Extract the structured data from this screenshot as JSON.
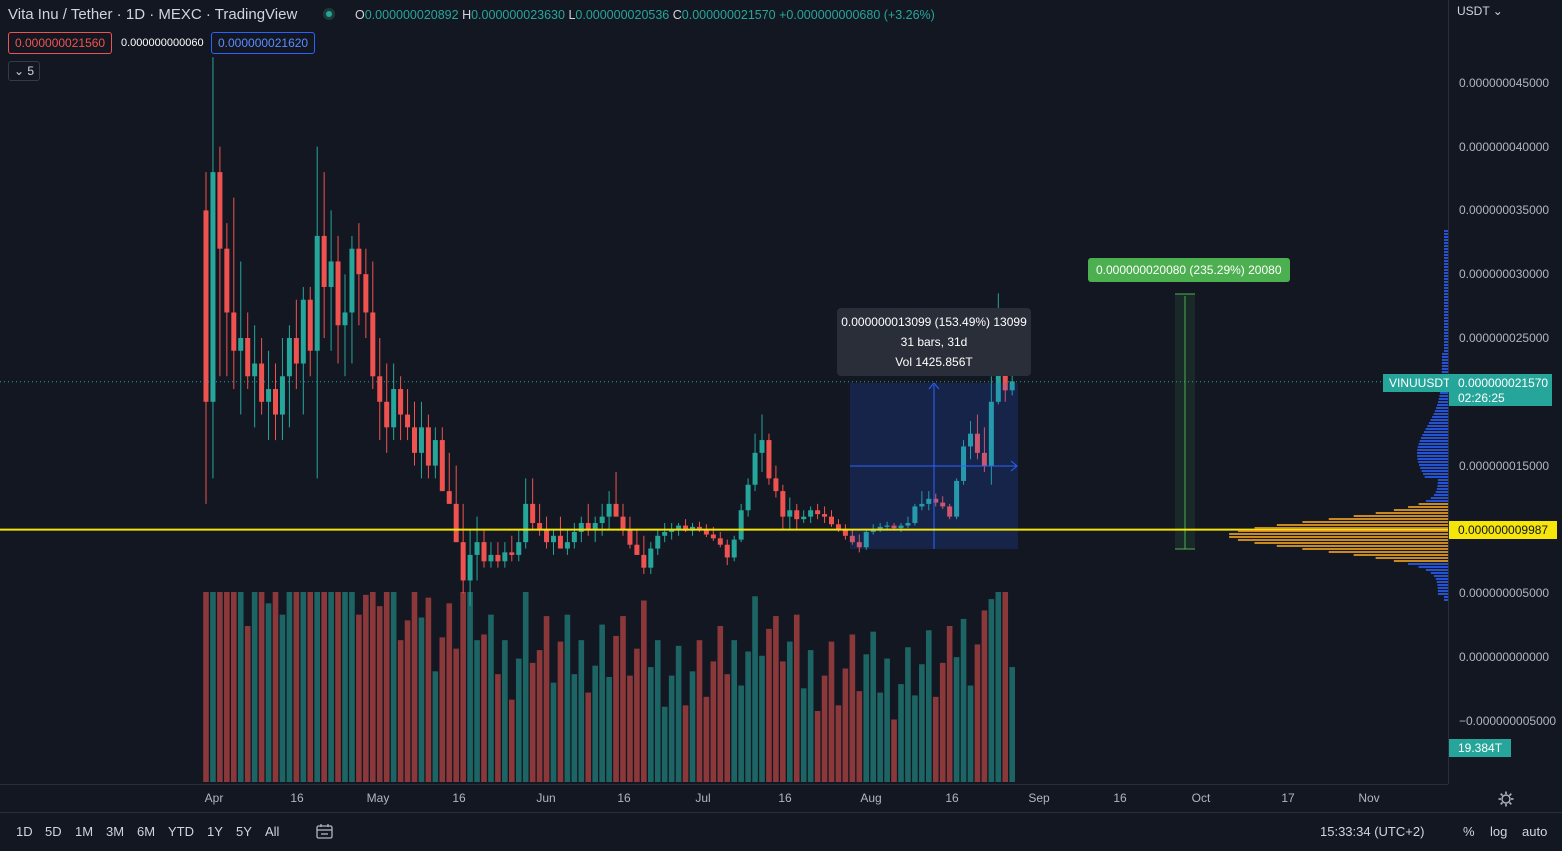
{
  "header": {
    "title": "Vita Inu / Tether · 1D · MEXC · TradingView",
    "ohlc": {
      "o_label": "O",
      "o": "0.000000020892",
      "h_label": "H",
      "h": "0.000000023630",
      "l_label": "L",
      "l": "0.000000020536",
      "c_label": "C",
      "c": "0.000000021570",
      "change": "+0.000000000680 (+3.26%)"
    },
    "sell_price": "0.000000021560",
    "spread": "0.000000000060",
    "buy_price": "0.000000021620",
    "indicators_toggle": "⌄ 5"
  },
  "price_scale": {
    "currency": "USDT ⌄",
    "labels": [
      "0.000000045000",
      "0.000000040000",
      "0.000000035000",
      "0.000000030000",
      "0.000000025000",
      "0.000000015000",
      "0.000000005000",
      "0.000000000000",
      "−0.000000005000"
    ],
    "symbol_tag": "VINUUSDT",
    "last_price": "0.000000021570",
    "countdown": "02:26:25",
    "hline_price": "0.000000009987",
    "volume_tag": "19.384T"
  },
  "drawings": {
    "date_price_range": {
      "line1": "0.000000013099 (153.49%) 13099",
      "line2": "31 bars, 31d",
      "line3": "Vol 1425.856T"
    },
    "price_range": {
      "label": "0.000000020080 (235.29%) 20080"
    }
  },
  "time_axis": {
    "ticks": [
      "Apr",
      "16",
      "May",
      "16",
      "Jun",
      "16",
      "Jul",
      "16",
      "Aug",
      "16",
      "Sep",
      "16",
      "Oct",
      "17",
      "Nov"
    ],
    "settings_icon": "gear-icon"
  },
  "bottom_bar": {
    "timeframes": [
      "1D",
      "5D",
      "1M",
      "3M",
      "6M",
      "YTD",
      "1Y",
      "5Y",
      "All"
    ],
    "goto_icon": "calendar-range-icon",
    "clock": "15:33:34 (UTC+2)",
    "percent": "%",
    "log": "log",
    "auto": "auto"
  },
  "colors": {
    "background": "#131722",
    "up": "#26a69a",
    "down": "#ef5350",
    "hline": "#f5e50a",
    "range_box": "#2962ff",
    "range_measure": "#4caf50"
  },
  "chart_data": {
    "type": "candlestick",
    "symbol": "VINUUSDT",
    "interval": "1D",
    "x_ticks": [
      "Apr",
      "16",
      "May",
      "16",
      "Jun",
      "16",
      "Jul",
      "16",
      "Aug",
      "16",
      "Sep",
      "16",
      "Oct",
      "17",
      "Nov"
    ],
    "y_ticks": [
      -5e-09,
      0,
      5e-09,
      1.5e-08,
      2.5e-08,
      3e-08,
      3.5e-08,
      4e-08,
      4.5e-08
    ],
    "last_close": 2.157e-08,
    "horizontal_line": 9.987e-09,
    "candles_ohlc_e9": [
      [
        35,
        38,
        12,
        20
      ],
      [
        20,
        47,
        14,
        38
      ],
      [
        38,
        40,
        22,
        32
      ],
      [
        32,
        34,
        22,
        27
      ],
      [
        27,
        36,
        21,
        24
      ],
      [
        24,
        31,
        19,
        25
      ],
      [
        25,
        27,
        21,
        22
      ],
      [
        22,
        26,
        18,
        23
      ],
      [
        23,
        25,
        19,
        20
      ],
      [
        20,
        24,
        17,
        21
      ],
      [
        21,
        23,
        17,
        19
      ],
      [
        19,
        25,
        17,
        22
      ],
      [
        22,
        26,
        18,
        25
      ],
      [
        25,
        28,
        21,
        23
      ],
      [
        23,
        29,
        19,
        28
      ],
      [
        28,
        29,
        22,
        24
      ],
      [
        24,
        40,
        14,
        33
      ],
      [
        33,
        38,
        25,
        29
      ],
      [
        29,
        35,
        24,
        31
      ],
      [
        31,
        33,
        23,
        26
      ],
      [
        26,
        30,
        22,
        27
      ],
      [
        27,
        33,
        23,
        32
      ],
      [
        32,
        34,
        26,
        30
      ],
      [
        30,
        32,
        25,
        27
      ],
      [
        27,
        31,
        21,
        22
      ],
      [
        22,
        25,
        17,
        20
      ],
      [
        20,
        23,
        16,
        18
      ],
      [
        18,
        23,
        17,
        21
      ],
      [
        21,
        22,
        17,
        19
      ],
      [
        19,
        21,
        17,
        18
      ],
      [
        18,
        20,
        15,
        16
      ],
      [
        16,
        20,
        14,
        18
      ],
      [
        18,
        19,
        14,
        15
      ],
      [
        15,
        18,
        14,
        17
      ],
      [
        17,
        18,
        14,
        13
      ],
      [
        13,
        16,
        12,
        12
      ],
      [
        12,
        15,
        10,
        9
      ],
      [
        9,
        12,
        5,
        6
      ],
      [
        6,
        10,
        4,
        8
      ],
      [
        8,
        11,
        6,
        9
      ],
      [
        9,
        10,
        7,
        7.5
      ],
      [
        7.5,
        9,
        7,
        8
      ],
      [
        8,
        9,
        7,
        7.5
      ],
      [
        7.5,
        9,
        7,
        8.2
      ],
      [
        8.2,
        9.5,
        7.5,
        8
      ],
      [
        8,
        10,
        7.5,
        9
      ],
      [
        9,
        14,
        8.5,
        12
      ],
      [
        12,
        14,
        10,
        10.5
      ],
      [
        10.5,
        12,
        9.5,
        10
      ],
      [
        10,
        11,
        8.5,
        9
      ],
      [
        9,
        10,
        8,
        9.5
      ],
      [
        9.5,
        11,
        8.5,
        8.5
      ],
      [
        8.5,
        10,
        8,
        9
      ],
      [
        9,
        10.5,
        8.5,
        9.8
      ],
      [
        9.8,
        11,
        9,
        10.5
      ],
      [
        10.5,
        12,
        9.5,
        10
      ],
      [
        10,
        11,
        9,
        10.5
      ],
      [
        10.5,
        12,
        9.5,
        11
      ],
      [
        11,
        13,
        10,
        12
      ],
      [
        12,
        14.5,
        11,
        11
      ],
      [
        11,
        12,
        9.5,
        10
      ],
      [
        10,
        11,
        8.5,
        8.8
      ],
      [
        8.8,
        10,
        8,
        8
      ],
      [
        8,
        9.5,
        6.5,
        7
      ],
      [
        7,
        9,
        6.5,
        8.5
      ],
      [
        8.5,
        10,
        8,
        9.5
      ],
      [
        9.5,
        10.5,
        9,
        9.8
      ],
      [
        9.8,
        10.5,
        9.2,
        10
      ],
      [
        10,
        10.5,
        9.5,
        10.3
      ],
      [
        10.3,
        10.8,
        9.8,
        9.9
      ],
      [
        9.9,
        10.5,
        9.5,
        10.2
      ],
      [
        10.2,
        10.6,
        9.8,
        10
      ],
      [
        10,
        10.4,
        9.4,
        9.6
      ],
      [
        9.6,
        10.2,
        9.1,
        9.3
      ],
      [
        9.3,
        9.8,
        8.6,
        8.8
      ],
      [
        8.8,
        9.2,
        7.2,
        7.8
      ],
      [
        7.8,
        9.5,
        7.5,
        9.2
      ],
      [
        9.2,
        12,
        9,
        11.5
      ],
      [
        11.5,
        14,
        11,
        13.5
      ],
      [
        13.5,
        17.5,
        13,
        16
      ],
      [
        16,
        19,
        14.5,
        17
      ],
      [
        17,
        17.5,
        13.5,
        14
      ],
      [
        14,
        15,
        12.5,
        13
      ],
      [
        13,
        13.5,
        10,
        11
      ],
      [
        11,
        12.5,
        10,
        11.5
      ],
      [
        11.5,
        12,
        10,
        10.8
      ],
      [
        10.8,
        11.5,
        10.5,
        11
      ],
      [
        11,
        11.8,
        10.5,
        11.5
      ],
      [
        11.5,
        12,
        10.8,
        11.2
      ],
      [
        11.2,
        11.8,
        10.5,
        11
      ],
      [
        11,
        11.5,
        10.2,
        10.4
      ],
      [
        10.4,
        10.8,
        9.8,
        10
      ],
      [
        10,
        10.4,
        9.2,
        9.5
      ],
      [
        9.5,
        10,
        8.8,
        9
      ],
      [
        9,
        9.6,
        8.2,
        8.6
      ],
      [
        8.6,
        10,
        8.4,
        9.8
      ],
      [
        9.8,
        10.4,
        9.6,
        10
      ],
      [
        10,
        10.5,
        9.8,
        10.2
      ],
      [
        10.2,
        10.6,
        9.9,
        10.3
      ],
      [
        10.3,
        10.5,
        9.9,
        10.1
      ],
      [
        10.1,
        10.5,
        9.8,
        10.3
      ],
      [
        10.3,
        11,
        10.1,
        10.5
      ],
      [
        10.5,
        12,
        10.3,
        11.8
      ],
      [
        11.8,
        13,
        11.5,
        12
      ],
      [
        12,
        13,
        11.5,
        12.4
      ],
      [
        12.4,
        12.8,
        11.8,
        12.1
      ],
      [
        12.1,
        12.6,
        11.6,
        11.8
      ],
      [
        11.8,
        12,
        10.8,
        11
      ],
      [
        11,
        14,
        10.8,
        13.8
      ],
      [
        13.8,
        17,
        13.5,
        16.5
      ],
      [
        16.5,
        18.5,
        15.5,
        17.5
      ],
      [
        17.5,
        19,
        15.5,
        16
      ],
      [
        16,
        18,
        14.5,
        15
      ],
      [
        15,
        22,
        13.5,
        20
      ],
      [
        20,
        28.5,
        19.8,
        25
      ],
      [
        25,
        25,
        20,
        20.9
      ],
      [
        20.9,
        23.6,
        20.5,
        21.6
      ]
    ]
  }
}
